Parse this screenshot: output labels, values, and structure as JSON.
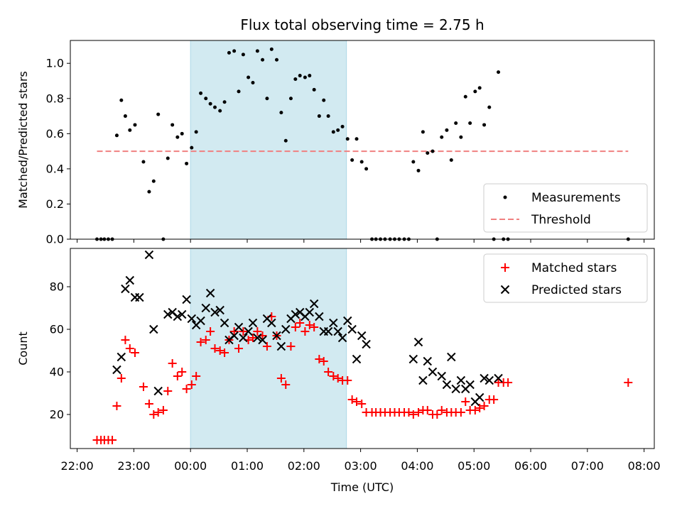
{
  "title": "Flux total observing time = 2.75 h",
  "colors": {
    "band": "#add8e6",
    "threshold": "#f08080",
    "matched": "#ff0000",
    "predicted": "#000000",
    "measure": "#000000"
  },
  "x_axis": {
    "label": "Time (UTC)",
    "ticks": [
      "22:00",
      "23:00",
      "00:00",
      "01:00",
      "02:00",
      "03:00",
      "04:00",
      "05:00",
      "06:00",
      "07:00",
      "08:00"
    ],
    "tick_hours": [
      -2,
      -1,
      0,
      1,
      2,
      3,
      4,
      5,
      6,
      7,
      8
    ],
    "range_hours": [
      -2.12,
      8.18
    ]
  },
  "band_hours": [
    0.0,
    2.75
  ],
  "chart_data": [
    {
      "type": "scatter",
      "ylabel": "Matched/Predicted stars",
      "ylim": [
        0,
        1.13
      ],
      "yticks": [
        "0.0",
        "0.2",
        "0.4",
        "0.6",
        "0.8",
        "1.0"
      ],
      "ytick_values": [
        0,
        0.2,
        0.4,
        0.6,
        0.8,
        1.0
      ],
      "threshold": {
        "y": 0.5,
        "x_range": [
          -1.65,
          7.72
        ]
      },
      "legend": {
        "placement": "lower-right",
        "entries": [
          "Measurements",
          "Threshold"
        ]
      },
      "series": [
        {
          "name": "Measurements",
          "points": [
            [
              -1.65,
              0
            ],
            [
              -1.58,
              0
            ],
            [
              -1.52,
              0
            ],
            [
              -1.45,
              0
            ],
            [
              -1.38,
              0
            ],
            [
              -1.3,
              0.59
            ],
            [
              -1.22,
              0.79
            ],
            [
              -1.15,
              0.7
            ],
            [
              -1.07,
              0.62
            ],
            [
              -0.98,
              0.65
            ],
            [
              -0.83,
              0.44
            ],
            [
              -0.73,
              0.27
            ],
            [
              -0.65,
              0.33
            ],
            [
              -0.57,
              0.71
            ],
            [
              -0.48,
              0
            ],
            [
              -0.4,
              0.46
            ],
            [
              -0.32,
              0.65
            ],
            [
              -0.23,
              0.58
            ],
            [
              -0.15,
              0.6
            ],
            [
              -0.07,
              0.43
            ],
            [
              0.02,
              0.52
            ],
            [
              0.1,
              0.61
            ],
            [
              0.18,
              0.83
            ],
            [
              0.27,
              0.8
            ],
            [
              0.35,
              0.77
            ],
            [
              0.43,
              0.75
            ],
            [
              0.52,
              0.73
            ],
            [
              0.6,
              0.78
            ],
            [
              0.68,
              1.06
            ],
            [
              0.77,
              1.07
            ],
            [
              0.85,
              0.84
            ],
            [
              0.93,
              1.05
            ],
            [
              1.02,
              0.92
            ],
            [
              1.1,
              0.89
            ],
            [
              1.18,
              1.07
            ],
            [
              1.27,
              1.02
            ],
            [
              1.35,
              0.8
            ],
            [
              1.43,
              1.08
            ],
            [
              1.52,
              1.02
            ],
            [
              1.6,
              0.72
            ],
            [
              1.68,
              0.56
            ],
            [
              1.77,
              0.8
            ],
            [
              1.85,
              0.91
            ],
            [
              1.93,
              0.93
            ],
            [
              2.02,
              0.92
            ],
            [
              2.1,
              0.93
            ],
            [
              2.18,
              0.85
            ],
            [
              2.27,
              0.7
            ],
            [
              2.35,
              0.79
            ],
            [
              2.43,
              0.7
            ],
            [
              2.52,
              0.61
            ],
            [
              2.6,
              0.62
            ],
            [
              2.68,
              0.64
            ],
            [
              2.77,
              0.57
            ],
            [
              2.85,
              0.45
            ],
            [
              2.93,
              0.57
            ],
            [
              3.02,
              0.44
            ],
            [
              3.1,
              0.4
            ],
            [
              3.2,
              0
            ],
            [
              3.27,
              0
            ],
            [
              3.35,
              0
            ],
            [
              3.43,
              0
            ],
            [
              3.52,
              0
            ],
            [
              3.6,
              0
            ],
            [
              3.68,
              0
            ],
            [
              3.77,
              0
            ],
            [
              3.85,
              0
            ],
            [
              3.93,
              0.44
            ],
            [
              4.02,
              0.39
            ],
            [
              4.1,
              0.61
            ],
            [
              4.18,
              0.49
            ],
            [
              4.27,
              0.5
            ],
            [
              4.35,
              0
            ],
            [
              4.43,
              0.58
            ],
            [
              4.52,
              0.62
            ],
            [
              4.6,
              0.45
            ],
            [
              4.68,
              0.66
            ],
            [
              4.77,
              0.58
            ],
            [
              4.85,
              0.81
            ],
            [
              4.93,
              0.66
            ],
            [
              5.02,
              0.84
            ],
            [
              5.1,
              0.86
            ],
            [
              5.18,
              0.65
            ],
            [
              5.27,
              0.75
            ],
            [
              5.35,
              0
            ],
            [
              5.43,
              0.95
            ],
            [
              5.52,
              0
            ],
            [
              5.6,
              0
            ],
            [
              7.72,
              0
            ]
          ]
        }
      ]
    },
    {
      "type": "scatter",
      "ylabel": "Count",
      "ylim": [
        4,
        98
      ],
      "yticks": [
        "20",
        "40",
        "60",
        "80"
      ],
      "ytick_values": [
        20,
        40,
        60,
        80
      ],
      "legend": {
        "placement": "top-right",
        "entries": [
          "Matched stars",
          "Predicted stars"
        ]
      },
      "series": [
        {
          "name": "Matched stars",
          "marker": "plus",
          "points": [
            [
              -1.65,
              8
            ],
            [
              -1.58,
              8
            ],
            [
              -1.52,
              8
            ],
            [
              -1.45,
              8
            ],
            [
              -1.38,
              8
            ],
            [
              -1.3,
              24
            ],
            [
              -1.22,
              37
            ],
            [
              -1.15,
              55
            ],
            [
              -1.07,
              51
            ],
            [
              -0.98,
              49
            ],
            [
              -0.83,
              33
            ],
            [
              -0.73,
              25
            ],
            [
              -0.65,
              20
            ],
            [
              -0.57,
              21
            ],
            [
              -0.48,
              22
            ],
            [
              -0.4,
              31
            ],
            [
              -0.32,
              44
            ],
            [
              -0.23,
              38
            ],
            [
              -0.15,
              40
            ],
            [
              -0.07,
              32
            ],
            [
              0.02,
              34
            ],
            [
              0.1,
              38
            ],
            [
              0.18,
              54
            ],
            [
              0.27,
              55
            ],
            [
              0.35,
              59
            ],
            [
              0.43,
              51
            ],
            [
              0.52,
              50
            ],
            [
              0.6,
              49
            ],
            [
              0.68,
              55
            ],
            [
              0.77,
              59
            ],
            [
              0.85,
              51
            ],
            [
              0.93,
              59
            ],
            [
              1.02,
              55
            ],
            [
              1.1,
              56
            ],
            [
              1.18,
              59
            ],
            [
              1.27,
              57
            ],
            [
              1.35,
              52
            ],
            [
              1.43,
              66
            ],
            [
              1.52,
              57
            ],
            [
              1.6,
              37
            ],
            [
              1.68,
              34
            ],
            [
              1.77,
              52
            ],
            [
              1.85,
              61
            ],
            [
              1.93,
              63
            ],
            [
              2.02,
              59
            ],
            [
              2.1,
              62
            ],
            [
              2.18,
              61
            ],
            [
              2.27,
              46
            ],
            [
              2.35,
              45
            ],
            [
              2.43,
              40
            ],
            [
              2.52,
              38
            ],
            [
              2.6,
              37
            ],
            [
              2.68,
              36
            ],
            [
              2.77,
              36
            ],
            [
              2.85,
              27
            ],
            [
              2.93,
              26
            ],
            [
              3.02,
              25
            ],
            [
              3.1,
              21
            ],
            [
              3.2,
              21
            ],
            [
              3.27,
              21
            ],
            [
              3.35,
              21
            ],
            [
              3.43,
              21
            ],
            [
              3.52,
              21
            ],
            [
              3.6,
              21
            ],
            [
              3.68,
              21
            ],
            [
              3.77,
              21
            ],
            [
              3.85,
              21
            ],
            [
              3.93,
              20
            ],
            [
              4.02,
              21
            ],
            [
              4.1,
              22
            ],
            [
              4.18,
              22
            ],
            [
              4.27,
              20
            ],
            [
              4.35,
              20
            ],
            [
              4.43,
              22
            ],
            [
              4.52,
              21
            ],
            [
              4.6,
              21
            ],
            [
              4.68,
              21
            ],
            [
              4.77,
              21
            ],
            [
              4.85,
              26
            ],
            [
              4.93,
              22
            ],
            [
              5.02,
              22
            ],
            [
              5.1,
              23
            ],
            [
              5.18,
              24
            ],
            [
              5.27,
              27
            ],
            [
              5.35,
              27
            ],
            [
              5.43,
              35
            ],
            [
              5.52,
              35
            ],
            [
              5.6,
              35
            ],
            [
              7.72,
              35
            ]
          ]
        },
        {
          "name": "Predicted stars",
          "marker": "x",
          "points": [
            [
              -1.3,
              41
            ],
            [
              -1.22,
              47
            ],
            [
              -1.15,
              79
            ],
            [
              -1.07,
              83
            ],
            [
              -0.98,
              75
            ],
            [
              -0.9,
              75
            ],
            [
              -0.73,
              95
            ],
            [
              -0.65,
              60
            ],
            [
              -0.57,
              31
            ],
            [
              -0.4,
              67
            ],
            [
              -0.32,
              68
            ],
            [
              -0.23,
              66
            ],
            [
              -0.15,
              67
            ],
            [
              -0.07,
              74
            ],
            [
              0.02,
              65
            ],
            [
              0.1,
              62
            ],
            [
              0.18,
              64
            ],
            [
              0.27,
              70
            ],
            [
              0.35,
              77
            ],
            [
              0.43,
              68
            ],
            [
              0.52,
              69
            ],
            [
              0.6,
              63
            ],
            [
              0.68,
              55
            ],
            [
              0.77,
              57
            ],
            [
              0.85,
              61
            ],
            [
              0.93,
              56
            ],
            [
              1.02,
              59
            ],
            [
              1.1,
              63
            ],
            [
              1.18,
              56
            ],
            [
              1.27,
              55
            ],
            [
              1.35,
              65
            ],
            [
              1.43,
              63
            ],
            [
              1.52,
              57
            ],
            [
              1.6,
              52
            ],
            [
              1.68,
              60
            ],
            [
              1.77,
              65
            ],
            [
              1.85,
              67
            ],
            [
              1.93,
              68
            ],
            [
              2.02,
              66
            ],
            [
              2.1,
              68
            ],
            [
              2.18,
              72
            ],
            [
              2.27,
              66
            ],
            [
              2.35,
              59
            ],
            [
              2.43,
              59
            ],
            [
              2.52,
              63
            ],
            [
              2.6,
              59
            ],
            [
              2.68,
              56
            ],
            [
              2.77,
              64
            ],
            [
              2.85,
              60
            ],
            [
              2.93,
              46
            ],
            [
              3.02,
              57
            ],
            [
              3.1,
              53
            ],
            [
              3.93,
              46
            ],
            [
              4.02,
              54
            ],
            [
              4.1,
              36
            ],
            [
              4.18,
              45
            ],
            [
              4.27,
              40
            ],
            [
              4.43,
              38
            ],
            [
              4.52,
              34
            ],
            [
              4.6,
              47
            ],
            [
              4.68,
              32
            ],
            [
              4.77,
              36
            ],
            [
              4.85,
              32
            ],
            [
              4.93,
              34
            ],
            [
              5.02,
              26
            ],
            [
              5.1,
              28
            ],
            [
              5.18,
              37
            ],
            [
              5.27,
              36
            ],
            [
              5.43,
              37
            ]
          ]
        }
      ]
    }
  ]
}
